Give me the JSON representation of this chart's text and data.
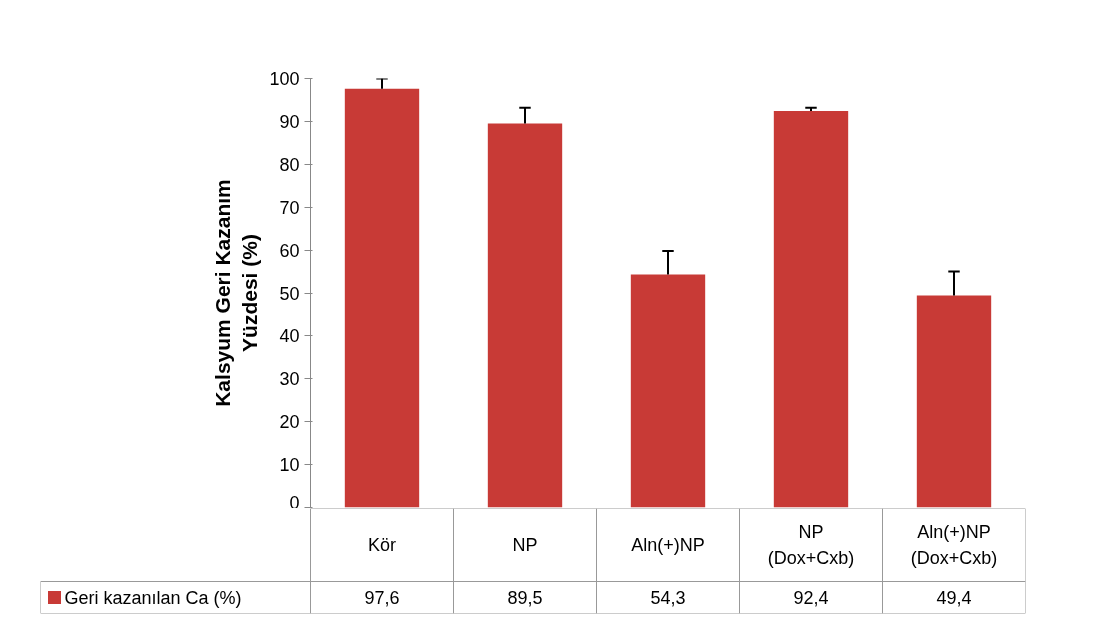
{
  "chart_data": {
    "type": "bar",
    "ylabel": "Kalsyum Geri Kazanım\nYüzdesi (%)",
    "categories": [
      "Kör",
      "NP",
      "Aln(+)NP",
      "NP (Dox+Cxb)",
      "Aln(+)NP (Dox+Cxb)"
    ],
    "series": [
      {
        "name": "Geri kazanılan Ca (%)",
        "color": "#c83a36",
        "values": [
          97.6,
          89.5,
          54.3,
          92.4,
          49.4
        ],
        "value_labels": [
          "97,6",
          "89,5",
          "54,3",
          "92,4",
          "49,4"
        ],
        "errors": [
          [
            97.6,
            100.0
          ],
          [
            89.5,
            93.2
          ],
          [
            54.3,
            59.8
          ],
          [
            92.4,
            93.2
          ],
          [
            49.4,
            55.0
          ]
        ]
      }
    ],
    "ylim": [
      0,
      100
    ],
    "yticks": [
      0,
      10,
      20,
      30,
      40,
      50,
      60,
      70,
      80,
      90,
      100
    ],
    "grid": false,
    "legend": "bottom"
  }
}
